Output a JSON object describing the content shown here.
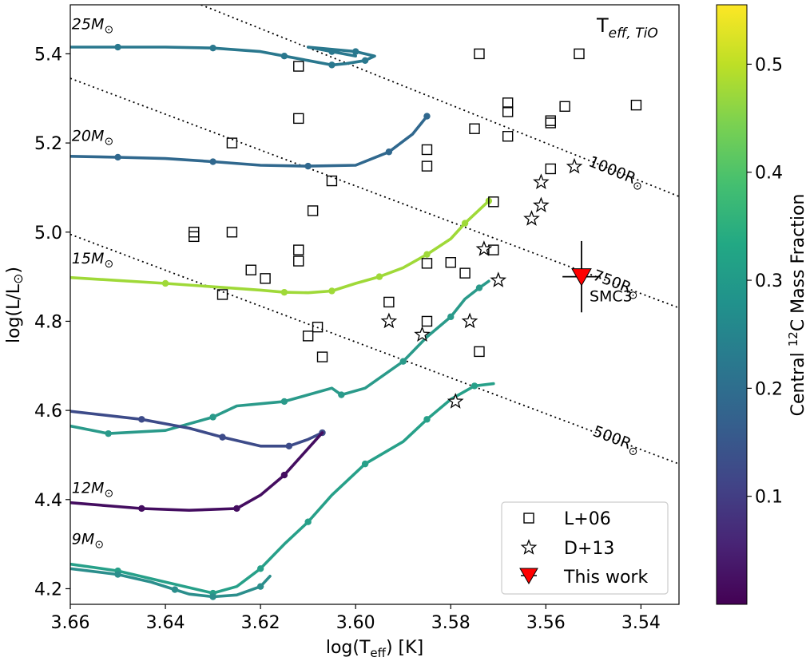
{
  "chart_data": {
    "type": "scatter",
    "xlabel": "log(T",
    "xlabel_sub": "eff",
    "xlabel_tail": ") [K]",
    "ylabel": "log(L/L",
    "ylabel_tail": ")",
    "xlim": [
      3.66,
      3.532
    ],
    "ylim": [
      4.165,
      5.51
    ],
    "xticks": [
      3.66,
      3.64,
      3.62,
      3.6,
      3.58,
      3.56,
      3.54
    ],
    "xtick_labels": [
      "3.66",
      "3.64",
      "3.62",
      "3.60",
      "3.58",
      "3.56",
      "3.54"
    ],
    "yticks": [
      4.2,
      4.4,
      4.6,
      4.8,
      5.0,
      5.2,
      5.4
    ],
    "ytick_labels": [
      "4.2",
      "4.4",
      "4.6",
      "4.8",
      "5.0",
      "5.2",
      "5.4"
    ],
    "corner_label": "T",
    "corner_label_sub": "eff, TiO",
    "mass_labels": [
      {
        "text": "25M",
        "x": 3.6597,
        "y": 5.455
      },
      {
        "text": "20M",
        "x": 3.6597,
        "y": 5.205
      },
      {
        "text": "15M",
        "x": 3.6597,
        "y": 4.93
      },
      {
        "text": "12M",
        "x": 3.6597,
        "y": 4.415
      },
      {
        "text": "9M",
        "x": 3.6597,
        "y": 4.3
      }
    ],
    "radius_lines": [
      {
        "label": "1000R",
        "pts": [
          [
            3.6325,
            5.51
          ],
          [
            3.532,
            5.08
          ]
        ],
        "label_x": 3.5455,
        "label_y": 5.125
      },
      {
        "label": "750R",
        "pts": [
          [
            3.66,
            5.345
          ],
          [
            3.532,
            4.83
          ]
        ],
        "label_x": 3.5455,
        "label_y": 4.875
      },
      {
        "label": "500R",
        "pts": [
          [
            3.66,
            4.995
          ],
          [
            3.532,
            4.48
          ]
        ],
        "label_x": 3.5455,
        "label_y": 4.525
      }
    ],
    "colorbar": {
      "label": "Central ",
      "label_sup": "12",
      "label_tail": "C Mass Fraction",
      "range": [
        0.0,
        0.555
      ],
      "ticks": [
        0.1,
        0.2,
        0.3,
        0.4,
        0.5
      ],
      "tick_labels": [
        "0.1",
        "0.2",
        "0.3",
        "0.4",
        "0.5"
      ]
    },
    "tracks": [
      {
        "name": "25 Msun track",
        "color": "#2a788e",
        "points": [
          [
            3.66,
            5.415
          ],
          [
            3.65,
            5.415
          ],
          [
            3.64,
            5.415
          ],
          [
            3.63,
            5.413
          ],
          [
            3.62,
            5.405
          ],
          [
            3.615,
            5.395
          ],
          [
            3.61,
            5.385
          ],
          [
            3.605,
            5.375
          ],
          [
            3.602,
            5.378
          ],
          [
            3.598,
            5.385
          ],
          [
            3.596,
            5.395
          ],
          [
            3.6,
            5.405
          ],
          [
            3.61,
            5.415
          ],
          [
            3.605,
            5.405
          ],
          [
            3.6,
            5.395
          ]
        ]
      },
      {
        "name": "20 Msun track",
        "color": "#30688e",
        "points": [
          [
            3.66,
            5.17
          ],
          [
            3.65,
            5.168
          ],
          [
            3.64,
            5.165
          ],
          [
            3.63,
            5.158
          ],
          [
            3.62,
            5.15
          ],
          [
            3.61,
            5.148
          ],
          [
            3.6,
            5.15
          ],
          [
            3.593,
            5.18
          ],
          [
            3.588,
            5.22
          ],
          [
            3.585,
            5.26
          ]
        ]
      },
      {
        "name": "15 Msun track",
        "color": "#9fd938",
        "points": [
          [
            3.66,
            4.898
          ],
          [
            3.64,
            4.885
          ],
          [
            3.62,
            4.87
          ],
          [
            3.615,
            4.865
          ],
          [
            3.61,
            4.864
          ],
          [
            3.605,
            4.868
          ],
          [
            3.6,
            4.885
          ],
          [
            3.595,
            4.9
          ],
          [
            3.59,
            4.92
          ],
          [
            3.585,
            4.95
          ],
          [
            3.58,
            4.985
          ],
          [
            3.577,
            5.02
          ],
          [
            3.574,
            5.05
          ],
          [
            3.572,
            5.07
          ]
        ]
      },
      {
        "name": "12 Msun track",
        "color": "#2a9a8a",
        "points": [
          [
            3.66,
            4.565
          ],
          [
            3.652,
            4.548
          ],
          [
            3.64,
            4.555
          ],
          [
            3.63,
            4.585
          ],
          [
            3.625,
            4.61
          ],
          [
            3.615,
            4.62
          ],
          [
            3.605,
            4.65
          ],
          [
            3.603,
            4.635
          ],
          [
            3.598,
            4.65
          ],
          [
            3.59,
            4.71
          ],
          [
            3.585,
            4.765
          ],
          [
            3.58,
            4.81
          ],
          [
            3.577,
            4.85
          ],
          [
            3.574,
            4.875
          ],
          [
            3.572,
            4.89
          ]
        ]
      },
      {
        "name": "12 Msun early track",
        "color": "#3d4b89",
        "points": [
          [
            3.66,
            4.598
          ],
          [
            3.645,
            4.58
          ],
          [
            3.635,
            4.56
          ],
          [
            3.628,
            4.54
          ],
          [
            3.62,
            4.52
          ],
          [
            3.614,
            4.52
          ],
          [
            3.61,
            4.535
          ],
          [
            3.607,
            4.55
          ]
        ]
      },
      {
        "name": "12 Msun pre track",
        "color": "#440d60",
        "points": [
          [
            3.66,
            4.393
          ],
          [
            3.645,
            4.38
          ],
          [
            3.635,
            4.376
          ],
          [
            3.625,
            4.38
          ],
          [
            3.62,
            4.41
          ],
          [
            3.615,
            4.455
          ],
          [
            3.607,
            4.55
          ]
        ]
      },
      {
        "name": "9 Msun track",
        "color": "#27a089",
        "points": [
          [
            3.66,
            4.255
          ],
          [
            3.65,
            4.24
          ],
          [
            3.64,
            4.215
          ],
          [
            3.63,
            4.19
          ],
          [
            3.625,
            4.205
          ],
          [
            3.62,
            4.245
          ],
          [
            3.615,
            4.3
          ],
          [
            3.61,
            4.35
          ],
          [
            3.605,
            4.41
          ],
          [
            3.598,
            4.48
          ],
          [
            3.59,
            4.53
          ],
          [
            3.585,
            4.58
          ],
          [
            3.58,
            4.625
          ],
          [
            3.575,
            4.655
          ],
          [
            3.571,
            4.66
          ]
        ]
      },
      {
        "name": "9 Msun early track",
        "color": "#2b8e8c",
        "points": [
          [
            3.66,
            4.245
          ],
          [
            3.65,
            4.232
          ],
          [
            3.643,
            4.215
          ],
          [
            3.638,
            4.198
          ],
          [
            3.635,
            4.188
          ],
          [
            3.63,
            4.182
          ],
          [
            3.625,
            4.186
          ],
          [
            3.62,
            4.205
          ],
          [
            3.618,
            4.228
          ]
        ]
      }
    ],
    "series": [
      {
        "name": "L+06",
        "marker": "square",
        "points": [
          [
            3.612,
            5.372
          ],
          [
            3.574,
            5.4
          ],
          [
            3.553,
            5.4
          ],
          [
            3.568,
            5.29
          ],
          [
            3.568,
            5.27
          ],
          [
            3.556,
            5.282
          ],
          [
            3.559,
            5.25
          ],
          [
            3.559,
            5.245
          ],
          [
            3.541,
            5.285
          ],
          [
            3.612,
            5.255
          ],
          [
            3.575,
            5.232
          ],
          [
            3.568,
            5.215
          ],
          [
            3.626,
            5.2
          ],
          [
            3.585,
            5.185
          ],
          [
            3.585,
            5.148
          ],
          [
            3.559,
            5.142
          ],
          [
            3.605,
            5.115
          ],
          [
            3.571,
            5.068
          ],
          [
            3.609,
            5.048
          ],
          [
            3.634,
            5.0
          ],
          [
            3.634,
            4.99
          ],
          [
            3.626,
            5.0
          ],
          [
            3.612,
            4.96
          ],
          [
            3.612,
            4.935
          ],
          [
            3.571,
            4.96
          ],
          [
            3.585,
            4.93
          ],
          [
            3.58,
            4.932
          ],
          [
            3.577,
            4.908
          ],
          [
            3.622,
            4.915
          ],
          [
            3.619,
            4.896
          ],
          [
            3.628,
            4.86
          ],
          [
            3.593,
            4.843
          ],
          [
            3.585,
            4.8
          ],
          [
            3.608,
            4.787
          ],
          [
            3.61,
            4.767
          ],
          [
            3.607,
            4.72
          ],
          [
            3.574,
            4.732
          ]
        ]
      },
      {
        "name": "D+13",
        "marker": "star",
        "points": [
          [
            3.554,
            5.147
          ],
          [
            3.561,
            5.112
          ],
          [
            3.561,
            5.06
          ],
          [
            3.563,
            5.03
          ],
          [
            3.573,
            4.962
          ],
          [
            3.57,
            4.892
          ],
          [
            3.593,
            4.8
          ],
          [
            3.576,
            4.8
          ],
          [
            3.586,
            4.77
          ],
          [
            3.579,
            4.62
          ]
        ]
      },
      {
        "name": "This work",
        "marker": "triangle",
        "color": "#ff0000",
        "points": [
          {
            "x": 3.5525,
            "y": 4.9,
            "xerr": 0.004,
            "yerr": 0.08,
            "label": "SMC3"
          }
        ]
      }
    ],
    "legend": {
      "position": "bottom-right",
      "entries": [
        "L+06",
        "D+13",
        "This work"
      ]
    }
  }
}
